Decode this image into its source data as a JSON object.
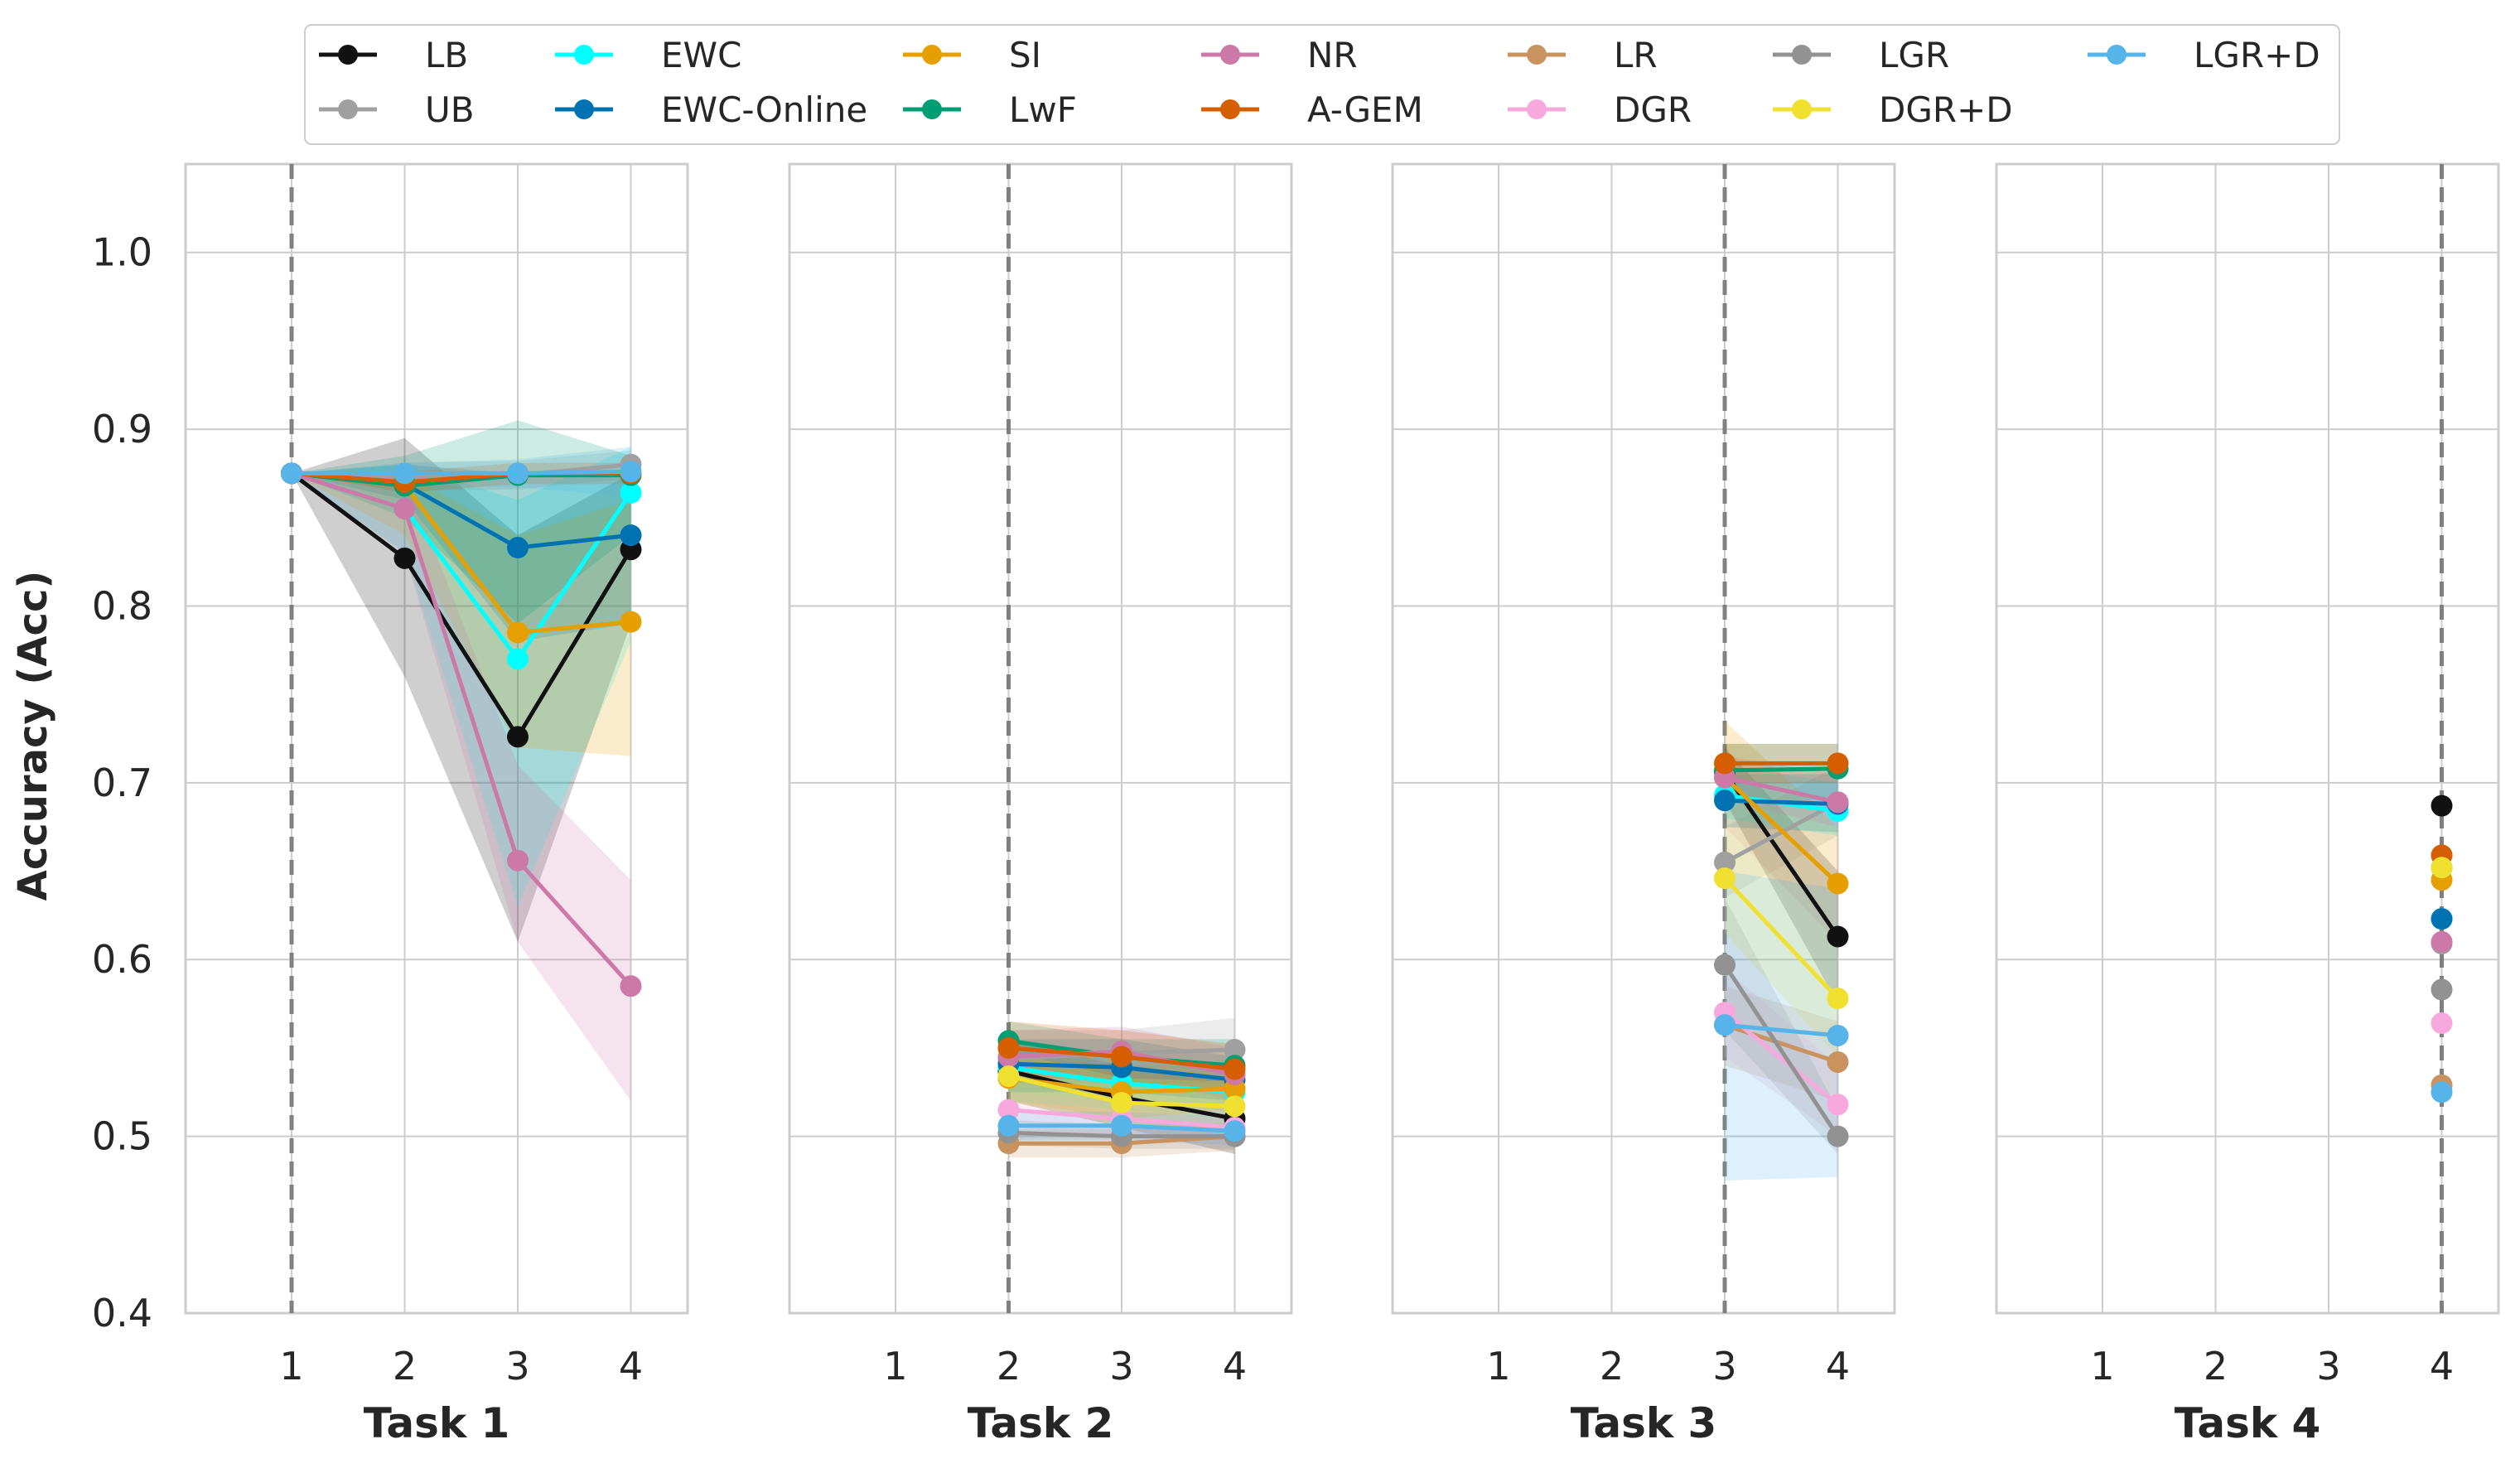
{
  "chart_data": {
    "type": "line",
    "ylabel": "Accuracy (Acc)",
    "ylim": [
      0.4,
      1.05
    ],
    "yticks": [
      "0.4",
      "0.5",
      "0.6",
      "0.7",
      "0.8",
      "0.9",
      "1.0"
    ],
    "x_categories": [
      "1",
      "2",
      "3",
      "4"
    ],
    "grid": true,
    "legend_position": "top",
    "methods": [
      {
        "name": "LB",
        "color": "#111111"
      },
      {
        "name": "UB",
        "color": "#a0a0a0"
      },
      {
        "name": "EWC",
        "color": "#00ffff"
      },
      {
        "name": "EWC-Online",
        "color": "#0072b2"
      },
      {
        "name": "SI",
        "color": "#e69f00"
      },
      {
        "name": "LwF",
        "color": "#009e73"
      },
      {
        "name": "NR",
        "color": "#cc79a7"
      },
      {
        "name": "A-GEM",
        "color": "#d55e00"
      },
      {
        "name": "LR",
        "color": "#c8935f"
      },
      {
        "name": "DGR",
        "color": "#f7a8dc"
      },
      {
        "name": "LGR",
        "color": "#929292"
      },
      {
        "name": "DGR+D",
        "color": "#f0e130"
      },
      {
        "name": "LGR+D",
        "color": "#56b4e9"
      }
    ],
    "panels": [
      {
        "xlabel": "Task 1",
        "task_index": 1,
        "series": [
          {
            "name": "LB",
            "x": [
              1,
              2,
              3,
              4
            ],
            "values": [
              0.875,
              0.827,
              0.726,
              0.832
            ],
            "lower": [
              0.875,
              0.76,
              0.61,
              0.79
            ],
            "upper": [
              0.875,
              0.895,
              0.84,
              0.875
            ]
          },
          {
            "name": "UB",
            "x": [
              1,
              2,
              3,
              4
            ],
            "values": [
              0.875,
              0.873,
              0.874,
              0.88
            ],
            "lower": [
              0.875,
              0.865,
              0.866,
              0.872
            ],
            "upper": [
              0.875,
              0.881,
              0.882,
              0.888
            ]
          },
          {
            "name": "EWC",
            "x": [
              1,
              2,
              3,
              4
            ],
            "values": [
              0.875,
              0.855,
              0.77,
              0.864
            ],
            "lower": [
              0.875,
              0.83,
              0.63,
              0.78
            ],
            "upper": [
              0.875,
              0.88,
              0.86,
              0.89
            ]
          },
          {
            "name": "EWC-Online",
            "x": [
              1,
              2,
              3,
              4
            ],
            "values": [
              0.875,
              0.869,
              0.833,
              0.84
            ],
            "lower": [
              0.875,
              0.86,
              0.78,
              0.79
            ],
            "upper": [
              0.875,
              0.88,
              0.875,
              0.875
            ]
          },
          {
            "name": "SI",
            "x": [
              1,
              2,
              3,
              4
            ],
            "values": [
              0.875,
              0.868,
              0.785,
              0.791
            ],
            "lower": [
              0.875,
              0.84,
              0.72,
              0.715
            ],
            "upper": [
              0.875,
              0.875,
              0.84,
              0.86
            ]
          },
          {
            "name": "LwF",
            "x": [
              1,
              2,
              3,
              4
            ],
            "values": [
              0.875,
              0.868,
              0.874,
              0.874
            ],
            "lower": [
              0.875,
              0.85,
              0.79,
              0.84
            ],
            "upper": [
              0.875,
              0.885,
              0.905,
              0.885
            ]
          },
          {
            "name": "NR",
            "x": [
              1,
              2,
              3,
              4
            ],
            "values": [
              0.875,
              0.855,
              0.656,
              0.585
            ],
            "lower": [
              0.875,
              0.83,
              0.61,
              0.52
            ],
            "upper": [
              0.875,
              0.875,
              0.71,
              0.645
            ]
          },
          {
            "name": "A-GEM",
            "x": [
              1,
              2,
              3,
              4
            ],
            "values": [
              0.875,
              0.87,
              0.875,
              0.875
            ],
            "lower": [
              0.875,
              0.864,
              0.869,
              0.869
            ],
            "upper": [
              0.875,
              0.876,
              0.881,
              0.881
            ]
          },
          {
            "name": "LGR+D",
            "x": [
              1,
              2,
              3,
              4
            ],
            "values": [
              0.875,
              0.875,
              0.875,
              0.876
            ],
            "lower": [
              0.875,
              0.869,
              0.867,
              0.862
            ],
            "upper": [
              0.875,
              0.881,
              0.883,
              0.89
            ]
          }
        ]
      },
      {
        "xlabel": "Task 2",
        "task_index": 2,
        "series": [
          {
            "name": "LB",
            "x": [
              2,
              3,
              4
            ],
            "values": [
              0.537,
              0.522,
              0.51
            ],
            "lower": [
              0.52,
              0.505,
              0.49
            ],
            "upper": [
              0.555,
              0.54,
              0.53
            ]
          },
          {
            "name": "UB",
            "x": [
              2,
              3,
              4
            ],
            "values": [
              0.544,
              0.547,
              0.549
            ],
            "lower": [
              0.53,
              0.53,
              0.53
            ],
            "upper": [
              0.56,
              0.56,
              0.567
            ]
          },
          {
            "name": "EWC",
            "x": [
              2,
              3,
              4
            ],
            "values": [
              0.539,
              0.53,
              0.525
            ],
            "lower": [
              0.52,
              0.515,
              0.51
            ],
            "upper": [
              0.555,
              0.545,
              0.54
            ]
          },
          {
            "name": "EWC-Online",
            "x": [
              2,
              3,
              4
            ],
            "values": [
              0.541,
              0.539,
              0.532
            ],
            "lower": [
              0.525,
              0.525,
              0.52
            ],
            "upper": [
              0.555,
              0.555,
              0.545
            ]
          },
          {
            "name": "SI",
            "x": [
              2,
              3,
              4
            ],
            "values": [
              0.533,
              0.525,
              0.527
            ],
            "lower": [
              0.52,
              0.51,
              0.515
            ],
            "upper": [
              0.545,
              0.54,
              0.54
            ]
          },
          {
            "name": "LwF",
            "x": [
              2,
              3,
              4
            ],
            "values": [
              0.554,
              0.545,
              0.54
            ],
            "lower": [
              0.54,
              0.53,
              0.525
            ],
            "upper": [
              0.565,
              0.555,
              0.555
            ]
          },
          {
            "name": "NR",
            "x": [
              2,
              3,
              4
            ],
            "values": [
              0.545,
              0.548,
              0.535
            ],
            "lower": [
              0.53,
              0.535,
              0.52
            ],
            "upper": [
              0.56,
              0.562,
              0.55
            ]
          },
          {
            "name": "A-GEM",
            "x": [
              2,
              3,
              4
            ],
            "values": [
              0.55,
              0.545,
              0.538
            ],
            "lower": [
              0.535,
              0.53,
              0.525
            ],
            "upper": [
              0.565,
              0.56,
              0.552
            ]
          },
          {
            "name": "LR",
            "x": [
              2,
              3,
              4
            ],
            "values": [
              0.496,
              0.496,
              0.5
            ],
            "lower": [
              0.488,
              0.488,
              0.492
            ],
            "upper": [
              0.504,
              0.504,
              0.508
            ]
          },
          {
            "name": "DGR",
            "x": [
              2,
              3,
              4
            ],
            "values": [
              0.515,
              0.51,
              0.505
            ],
            "lower": [
              0.505,
              0.5,
              0.495
            ],
            "upper": [
              0.525,
              0.52,
              0.515
            ]
          },
          {
            "name": "LGR",
            "x": [
              2,
              3,
              4
            ],
            "values": [
              0.502,
              0.5,
              0.5
            ],
            "lower": [
              0.495,
              0.493,
              0.493
            ],
            "upper": [
              0.509,
              0.507,
              0.507
            ]
          },
          {
            "name": "DGR+D",
            "x": [
              2,
              3,
              4
            ],
            "values": [
              0.534,
              0.519,
              0.517
            ],
            "lower": [
              0.52,
              0.505,
              0.503
            ],
            "upper": [
              0.548,
              0.533,
              0.531
            ]
          },
          {
            "name": "LGR+D",
            "x": [
              2,
              3,
              4
            ],
            "values": [
              0.506,
              0.506,
              0.503
            ],
            "lower": [
              0.498,
              0.498,
              0.495
            ],
            "upper": [
              0.514,
              0.514,
              0.511
            ]
          }
        ]
      },
      {
        "xlabel": "Task 3",
        "task_index": 3,
        "series": [
          {
            "name": "LB",
            "x": [
              3,
              4
            ],
            "values": [
              0.706,
              0.613
            ],
            "lower": [
              0.69,
              0.575
            ],
            "upper": [
              0.72,
              0.65
            ]
          },
          {
            "name": "UB",
            "x": [
              3,
              4
            ],
            "values": [
              0.655,
              0.689
            ],
            "lower": [
              0.635,
              0.67
            ],
            "upper": [
              0.675,
              0.71
            ]
          },
          {
            "name": "EWC",
            "x": [
              3,
              4
            ],
            "values": [
              0.693,
              0.684
            ],
            "lower": [
              0.68,
              0.67
            ],
            "upper": [
              0.71,
              0.7
            ]
          },
          {
            "name": "EWC-Online",
            "x": [
              3,
              4
            ],
            "values": [
              0.69,
              0.688
            ],
            "lower": [
              0.675,
              0.672
            ],
            "upper": [
              0.705,
              0.705
            ]
          },
          {
            "name": "SI",
            "x": [
              3,
              4
            ],
            "values": [
              0.703,
              0.643
            ],
            "lower": [
              0.675,
              0.61
            ],
            "upper": [
              0.735,
              0.675
            ]
          },
          {
            "name": "LwF",
            "x": [
              3,
              4
            ],
            "values": [
              0.707,
              0.708
            ],
            "lower": [
              0.69,
              0.69
            ],
            "upper": [
              0.722,
              0.722
            ]
          },
          {
            "name": "NR",
            "x": [
              3,
              4
            ],
            "values": [
              0.703,
              0.689
            ],
            "lower": [
              0.69,
              0.675
            ],
            "upper": [
              0.715,
              0.705
            ]
          },
          {
            "name": "A-GEM",
            "x": [
              3,
              4
            ],
            "values": [
              0.711,
              0.711
            ],
            "lower": [
              0.7,
              0.7
            ],
            "upper": [
              0.722,
              0.722
            ]
          },
          {
            "name": "LR",
            "x": [
              3,
              4
            ],
            "values": [
              0.563,
              0.542
            ],
            "lower": [
              0.54,
              0.52
            ],
            "upper": [
              0.585,
              0.565
            ]
          },
          {
            "name": "DGR",
            "x": [
              3,
              4
            ],
            "values": [
              0.57,
              0.518
            ],
            "lower": [
              0.545,
              0.5
            ],
            "upper": [
              0.595,
              0.54
            ]
          },
          {
            "name": "LGR",
            "x": [
              3,
              4
            ],
            "values": [
              0.597,
              0.5
            ],
            "lower": [
              0.56,
              0.49
            ],
            "upper": [
              0.635,
              0.515
            ]
          },
          {
            "name": "DGR+D",
            "x": [
              3,
              4
            ],
            "values": [
              0.646,
              0.578
            ],
            "lower": [
              0.615,
              0.545
            ],
            "upper": [
              0.675,
              0.61
            ]
          },
          {
            "name": "LGR+D",
            "x": [
              3,
              4
            ],
            "values": [
              0.563,
              0.557
            ],
            "lower": [
              0.475,
              0.477
            ],
            "upper": [
              0.65,
              0.64
            ]
          }
        ]
      },
      {
        "xlabel": "Task 4",
        "task_index": 4,
        "series": [
          {
            "name": "LB",
            "x": [
              4
            ],
            "values": [
              0.687
            ]
          },
          {
            "name": "UB",
            "x": [
              4
            ],
            "values": [
              0.609
            ]
          },
          {
            "name": "EWC",
            "x": [
              4
            ],
            "values": [
              0.623
            ]
          },
          {
            "name": "EWC-Online",
            "x": [
              4
            ],
            "values": [
              0.623
            ]
          },
          {
            "name": "SI",
            "x": [
              4
            ],
            "values": [
              0.645
            ]
          },
          {
            "name": "LwF",
            "x": [
              4
            ],
            "values": [
              0.652
            ]
          },
          {
            "name": "NR",
            "x": [
              4
            ],
            "values": [
              0.61
            ]
          },
          {
            "name": "A-GEM",
            "x": [
              4
            ],
            "values": [
              0.659
            ]
          },
          {
            "name": "LR",
            "x": [
              4
            ],
            "values": [
              0.529
            ]
          },
          {
            "name": "DGR",
            "x": [
              4
            ],
            "values": [
              0.564
            ]
          },
          {
            "name": "LGR",
            "x": [
              4
            ],
            "values": [
              0.583
            ]
          },
          {
            "name": "DGR+D",
            "x": [
              4
            ],
            "values": [
              0.652
            ]
          },
          {
            "name": "LGR+D",
            "x": [
              4
            ],
            "values": [
              0.525
            ]
          }
        ]
      }
    ]
  }
}
